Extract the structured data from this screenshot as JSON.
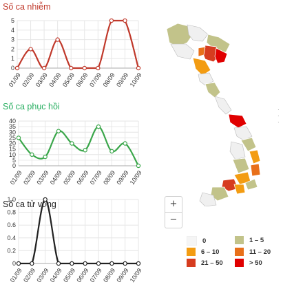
{
  "charts": [
    {
      "key": "infected",
      "title": "Số ca nhiễm",
      "color": "#c0392b",
      "line_color": "#c0392b",
      "chart_data": {
        "type": "line",
        "categories": [
          "01/09",
          "02/09",
          "03/09",
          "04/09",
          "05/09",
          "06/09",
          "07/09",
          "08/09",
          "09/09",
          "10/09"
        ],
        "values": [
          0,
          2,
          0,
          3,
          0,
          0,
          0,
          5,
          5,
          0
        ],
        "yticks": [
          0,
          1,
          2,
          3,
          4,
          5
        ],
        "ylim": [
          0,
          5
        ],
        "grid": true
      }
    },
    {
      "key": "recovered",
      "title": "Số ca phục hồi",
      "color": "#27ae60",
      "line_color": "#3aa64a",
      "chart_data": {
        "type": "line",
        "categories": [
          "01/09",
          "02/09",
          "03/09",
          "04/09",
          "05/09",
          "06/09",
          "07/09",
          "08/09",
          "09/09",
          "10/09"
        ],
        "values": [
          25,
          10,
          8,
          31,
          20,
          14,
          35,
          13,
          20,
          0
        ],
        "yticks": [
          0,
          5,
          10,
          15,
          20,
          25,
          30,
          35,
          40
        ],
        "ylim": [
          0,
          40
        ],
        "grid": true
      }
    },
    {
      "key": "deaths",
      "title": "Số ca tử vong",
      "color": "#222222",
      "line_color": "#222222",
      "chart_data": {
        "type": "line",
        "categories": [
          "01/09",
          "02/09",
          "03/09",
          "04/09",
          "05/09",
          "06/09",
          "07/09",
          "08/09",
          "09/09",
          "10/09"
        ],
        "values": [
          0,
          0,
          1,
          0,
          0,
          0,
          0,
          0,
          0,
          0
        ],
        "yticks": [
          "0",
          "0.2",
          "0.4",
          "0.6",
          "0.8",
          "1.0"
        ],
        "ylim": [
          0,
          1
        ],
        "grid": true
      }
    }
  ],
  "map": {
    "zoom_in_label": "+",
    "zoom_out_label": "−"
  },
  "legend": [
    {
      "label": "0",
      "color": "#f5f5f5"
    },
    {
      "label": "1 – 5",
      "color": "#c2c38a"
    },
    {
      "label": "6 – 10",
      "color": "#f39c12"
    },
    {
      "label": "11 – 20",
      "color": "#e8701a"
    },
    {
      "label": "21 – 50",
      "color": "#d63c1f"
    },
    {
      "label": "> 50",
      "color": "#e00000"
    }
  ]
}
